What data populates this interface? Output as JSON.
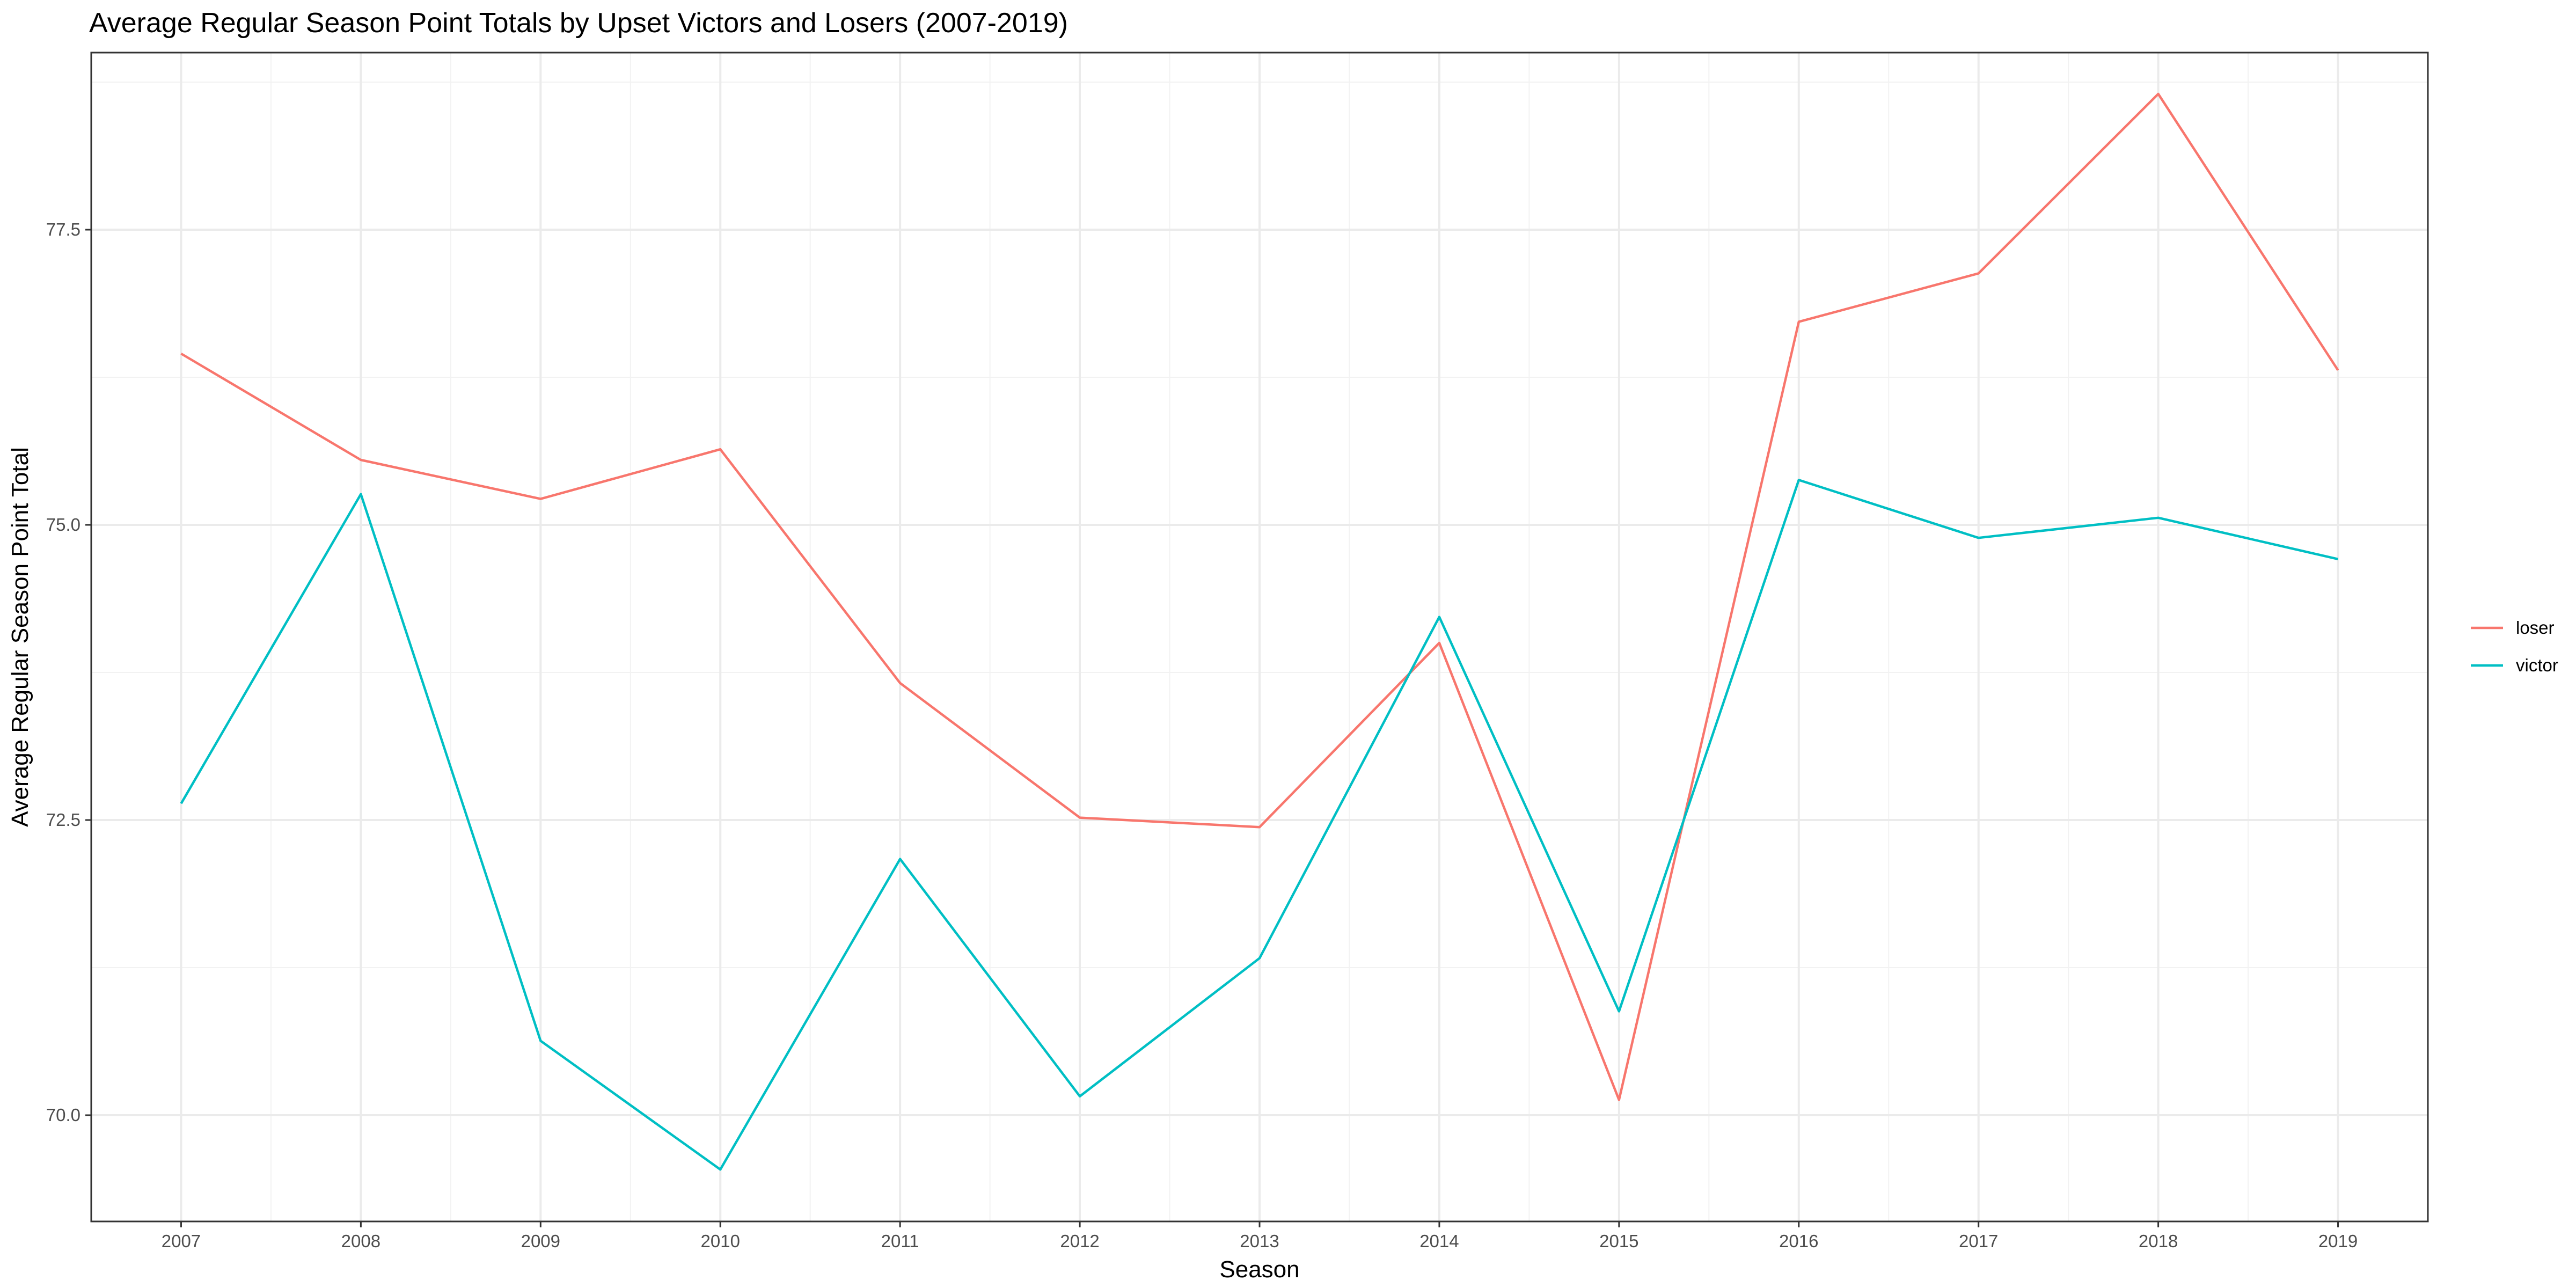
{
  "chart_data": {
    "type": "line",
    "title": "Average Regular Season Point Totals by Upset Victors and Losers (2007-2019)",
    "xlabel": "Season",
    "ylabel": "Average Regular Season Point Total",
    "x": [
      2007,
      2008,
      2009,
      2010,
      2011,
      2012,
      2013,
      2014,
      2015,
      2016,
      2017,
      2018,
      2019
    ],
    "xlim": [
      2006.5,
      2019.5
    ],
    "ylim": [
      69.1,
      79.0
    ],
    "y_ticks": [
      70.0,
      72.5,
      75.0,
      77.5
    ],
    "y_tick_labels": [
      "70.0",
      "72.5",
      "75.0",
      "77.5"
    ],
    "x_tick_labels": [
      "2007",
      "2008",
      "2009",
      "2010",
      "2011",
      "2012",
      "2013",
      "2014",
      "2015",
      "2016",
      "2017",
      "2018",
      "2019"
    ],
    "grid": true,
    "legend_position": "right",
    "series": [
      {
        "name": "loser",
        "color": "#F8766D",
        "values": [
          76.45,
          75.55,
          75.22,
          75.64,
          73.66,
          72.52,
          72.44,
          74.0,
          70.13,
          76.72,
          77.13,
          78.65,
          76.31
        ]
      },
      {
        "name": "victor",
        "color": "#00BFC4",
        "values": [
          72.64,
          75.26,
          70.63,
          69.54,
          72.17,
          70.16,
          71.33,
          74.22,
          70.88,
          75.38,
          74.89,
          75.06,
          74.71
        ]
      }
    ]
  }
}
